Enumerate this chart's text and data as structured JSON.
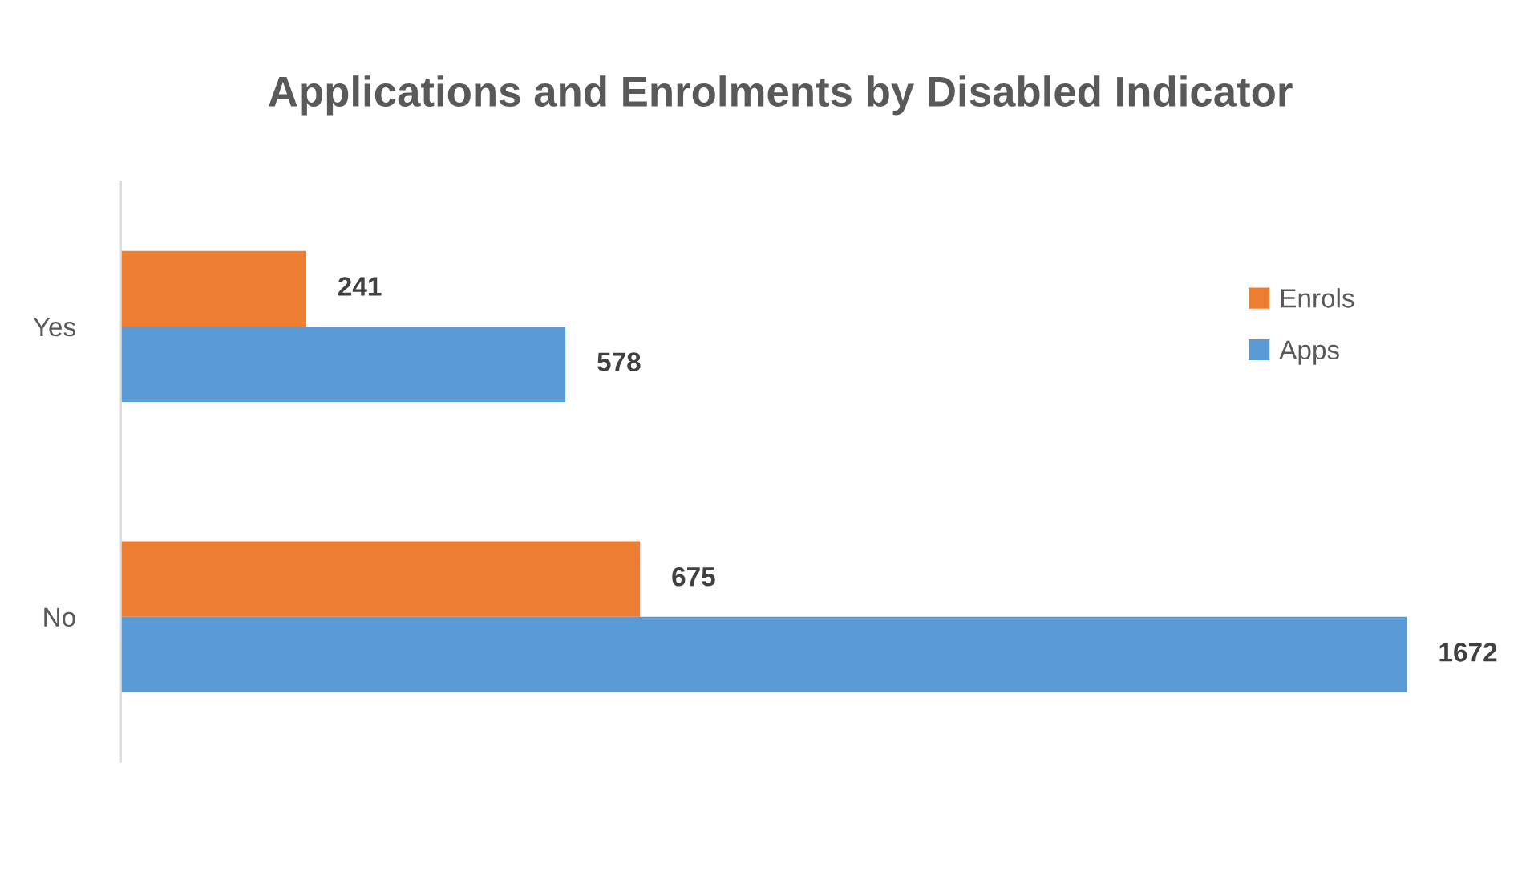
{
  "chart_data": {
    "type": "bar",
    "orientation": "horizontal",
    "title": "Applications and Enrolments by Disabled Indicator",
    "categories": [
      "Yes",
      "No"
    ],
    "series": [
      {
        "name": "Enrols",
        "color": "#ed7d31",
        "values": [
          241,
          675
        ]
      },
      {
        "name": "Apps",
        "color": "#5b9bd5",
        "values": [
          578,
          1672
        ]
      }
    ],
    "data_labels": true,
    "legend": "right",
    "grid": false,
    "tick_labels": "y"
  }
}
